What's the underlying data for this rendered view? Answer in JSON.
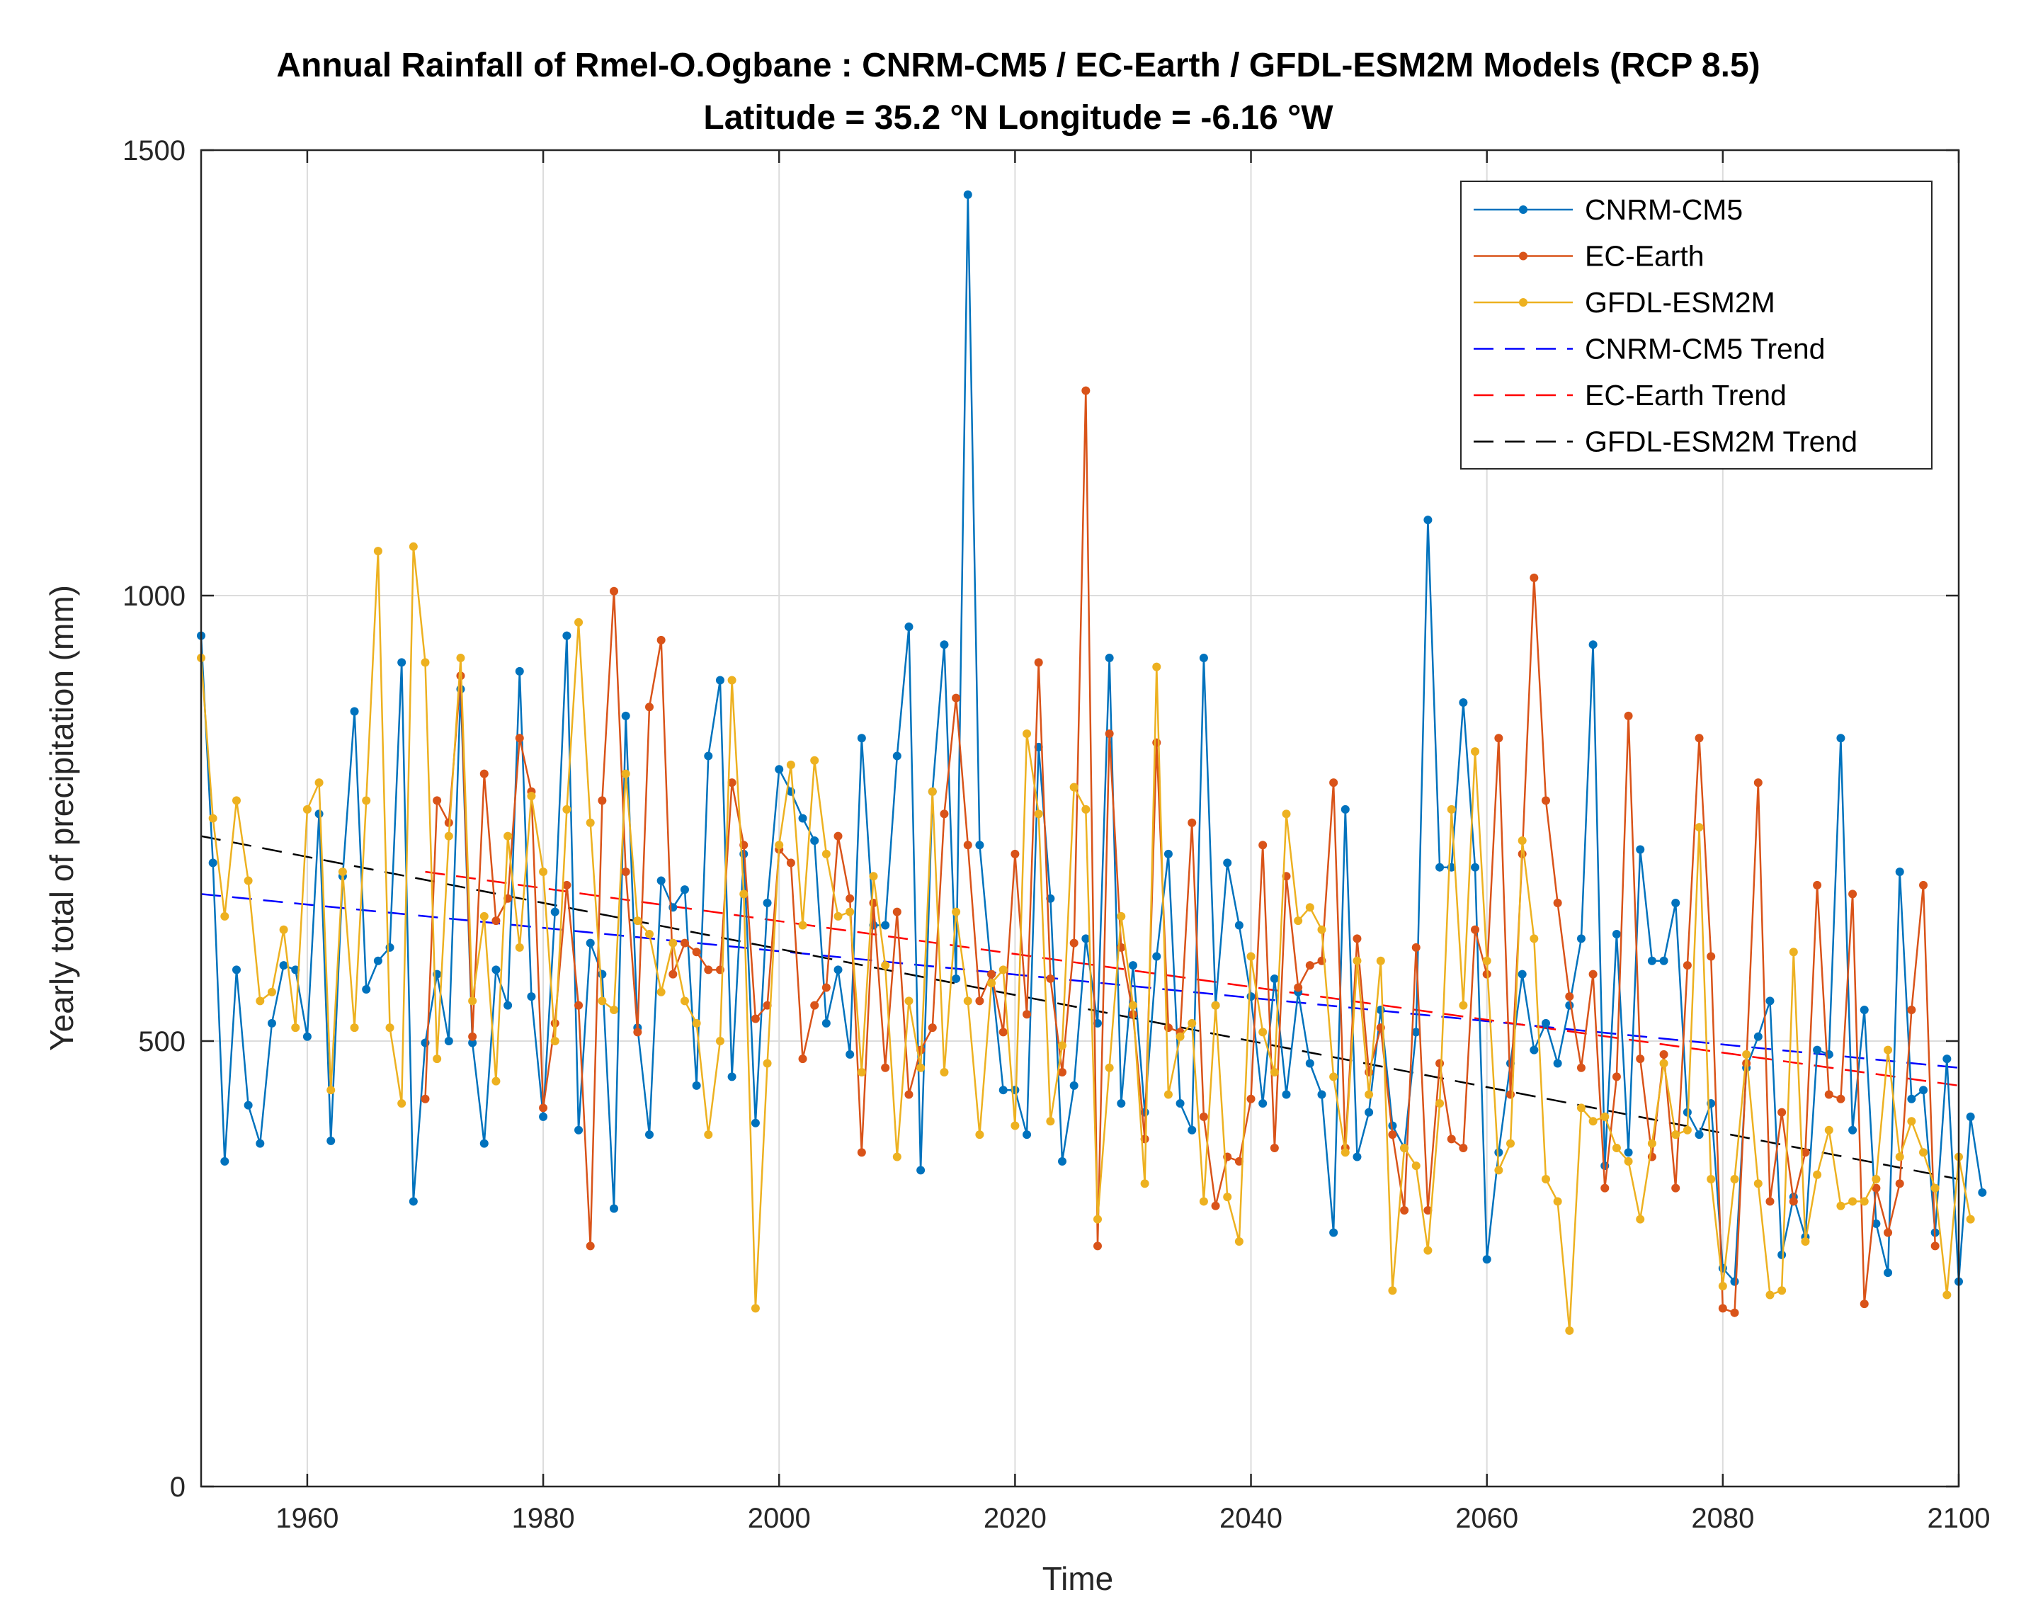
{
  "chart_data": {
    "type": "line",
    "title": "Annual Rainfall of Rmel-O.Ogbane : CNRM-CM5 / EC-Earth / GFDL-ESM2M Models (RCP 8.5)",
    "subtitle": "Latitude = 35.2 °N Longitude = -6.16 °W",
    "xlabel": "Time",
    "ylabel": "Yearly total of precipitation (mm)",
    "xlim": [
      1951,
      2100
    ],
    "ylim": [
      0,
      1500
    ],
    "xticks": [
      1960,
      1980,
      2000,
      2020,
      2040,
      2060,
      2080,
      2100
    ],
    "yticks": [
      0,
      500,
      1000,
      1500
    ],
    "grid": true,
    "legend_position": "top-right",
    "series": [
      {
        "name": "CNRM-CM5",
        "color": "#0072BD",
        "x_start": 1951,
        "values": [
          955,
          700,
          365,
          580,
          428,
          385,
          520,
          585,
          580,
          505,
          755,
          388,
          685,
          870,
          558,
          590,
          605,
          925,
          320,
          498,
          575,
          500,
          895,
          498,
          385,
          580,
          540,
          915,
          550,
          415,
          645,
          955,
          400,
          610,
          575,
          312,
          865,
          515,
          395,
          680,
          650,
          670,
          450,
          820,
          905,
          460,
          710,
          408,
          655,
          805,
          780,
          750,
          725,
          520,
          580,
          485,
          840,
          630,
          630,
          820,
          965,
          355,
          780,
          945,
          570,
          1450,
          720,
          575,
          445,
          445,
          395,
          830,
          660,
          365,
          450,
          615,
          520,
          930,
          430,
          585,
          420,
          595,
          710,
          430,
          400,
          930,
          540,
          700,
          630,
          550,
          430,
          570,
          440,
          555,
          475,
          440,
          285,
          760,
          370,
          420,
          535,
          405,
          380,
          510,
          1085,
          695,
          695,
          880,
          695,
          255,
          375,
          475,
          575,
          490,
          520,
          475,
          540,
          615,
          945,
          360,
          620,
          375,
          715,
          590,
          590,
          655,
          420,
          395,
          430,
          245,
          230,
          470,
          505,
          545,
          260,
          325,
          280,
          490,
          485,
          840,
          400,
          535,
          295,
          240,
          690,
          435,
          445,
          285,
          480,
          230,
          415,
          330
        ],
        "y_unit": "mm"
      },
      {
        "name": "EC-Earth",
        "color": "#D95319",
        "x_start": 1970,
        "values": [
          435,
          770,
          745,
          910,
          505,
          800,
          635,
          660,
          840,
          780,
          425,
          520,
          675,
          540,
          270,
          770,
          1005,
          690,
          510,
          875,
          950,
          575,
          610,
          600,
          580,
          580,
          790,
          720,
          525,
          540,
          715,
          700,
          480,
          540,
          560,
          730,
          660,
          375,
          655,
          470,
          645,
          440,
          490,
          515,
          755,
          885,
          720,
          545,
          575,
          510,
          710,
          530,
          925,
          570,
          465,
          610,
          1230,
          270,
          845,
          605,
          530,
          390,
          835,
          515,
          510,
          745,
          415,
          315,
          370,
          365,
          435,
          720,
          380,
          685,
          560,
          585,
          590,
          790,
          380,
          615,
          465,
          515,
          395,
          310,
          605,
          310,
          475,
          390,
          380,
          625,
          575,
          840,
          440,
          710,
          1020,
          770,
          655,
          550,
          470,
          575,
          335,
          460,
          865,
          480,
          370,
          485,
          335,
          585,
          840,
          595,
          200,
          195,
          475,
          790,
          320,
          420,
          320,
          375,
          675,
          440,
          435,
          665,
          205,
          335,
          285,
          340,
          535,
          675,
          270
        ],
        "y_unit": "mm"
      },
      {
        "name": "GFDL-ESM2M",
        "color": "#EDB120",
        "x_start": 1951,
        "values": [
          930,
          750,
          640,
          770,
          680,
          545,
          555,
          625,
          515,
          760,
          790,
          445,
          690,
          515,
          770,
          1050,
          515,
          430,
          1055,
          925,
          480,
          730,
          930,
          545,
          640,
          455,
          730,
          605,
          775,
          690,
          500,
          760,
          970,
          745,
          545,
          535,
          800,
          635,
          620,
          555,
          610,
          545,
          520,
          395,
          500,
          905,
          665,
          200,
          475,
          720,
          810,
          630,
          815,
          710,
          640,
          645,
          465,
          685,
          585,
          370,
          545,
          470,
          780,
          465,
          645,
          545,
          395,
          565,
          580,
          405,
          845,
          755,
          410,
          495,
          785,
          760,
          300,
          470,
          640,
          540,
          340,
          920,
          440,
          505,
          520,
          320,
          540,
          325,
          275,
          595,
          510,
          465,
          755,
          635,
          650,
          625,
          460,
          375,
          590,
          440,
          590,
          220,
          380,
          360,
          265,
          430,
          760,
          540,
          825,
          590,
          355,
          385,
          725,
          615,
          345,
          320,
          175,
          425,
          410,
          415,
          380,
          365,
          300,
          385,
          475,
          395,
          400,
          740,
          345,
          225,
          345,
          485,
          340,
          215,
          220,
          600,
          275,
          350,
          400,
          315,
          320,
          320,
          345,
          490,
          370,
          410,
          375,
          335,
          215,
          370,
          300
        ],
        "y_unit": "mm"
      },
      {
        "name": "CNRM-CM5 Trend",
        "color": "#0000FF",
        "dashed": true,
        "x": [
          1951,
          2100
        ],
        "y": [
          665,
          470
        ]
      },
      {
        "name": "EC-Earth Trend",
        "color": "#FF0000",
        "dashed": true,
        "x": [
          1970,
          2100
        ],
        "y": [
          690,
          450
        ]
      },
      {
        "name": "GFDL-ESM2M Trend",
        "color": "#000000",
        "dashed": true,
        "x": [
          1951,
          2100
        ],
        "y": [
          730,
          345
        ]
      }
    ]
  }
}
